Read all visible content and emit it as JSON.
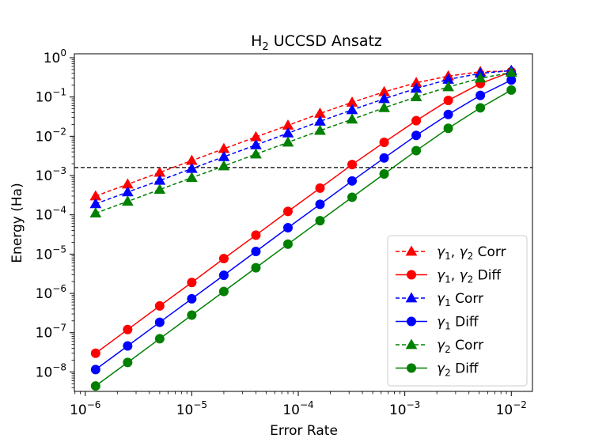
{
  "chart_data": {
    "type": "line",
    "title": "H₂ UCCSD Ansatz",
    "title_main": "H",
    "title_sub": "2",
    "title_rest": " UCCSD Ansatz",
    "xlabel": "Error Rate",
    "ylabel": "Energy (Ha)",
    "xscale": "log",
    "yscale": "log",
    "xlim": [
      7.9e-07,
      0.0158
    ],
    "ylim": [
      3.2e-09,
      1.26
    ],
    "x": [
      1.25e-06,
      2.5e-06,
      5e-06,
      1e-05,
      2e-05,
      4e-05,
      8e-05,
      0.00016,
      0.00032,
      0.00064,
      0.00128,
      0.00256,
      0.00512,
      0.01
    ],
    "hline": {
      "y": 0.0016,
      "style": "dashed",
      "color": "#000000"
    },
    "x_ticks": [
      {
        "value": 1e-06,
        "base": "10",
        "exp": "−6"
      },
      {
        "value": 1e-05,
        "base": "10",
        "exp": "−5"
      },
      {
        "value": 0.0001,
        "base": "10",
        "exp": "−4"
      },
      {
        "value": 0.001,
        "base": "10",
        "exp": "−3"
      },
      {
        "value": 0.01,
        "base": "10",
        "exp": "−2"
      }
    ],
    "y_ticks": [
      {
        "value": 1e-08,
        "base": "10",
        "exp": "−8"
      },
      {
        "value": 1e-07,
        "base": "10",
        "exp": "−7"
      },
      {
        "value": 1e-06,
        "base": "10",
        "exp": "−6"
      },
      {
        "value": 1e-05,
        "base": "10",
        "exp": "−5"
      },
      {
        "value": 0.0001,
        "base": "10",
        "exp": "−4"
      },
      {
        "value": 0.001,
        "base": "10",
        "exp": "−3"
      },
      {
        "value": 0.01,
        "base": "10",
        "exp": "−2"
      },
      {
        "value": 0.1,
        "base": "10",
        "exp": "−1"
      },
      {
        "value": 1,
        "base": "10",
        "exp": "0"
      }
    ],
    "legend_position": "lower-right",
    "series": [
      {
        "name": "γ1, γ2 Corr",
        "label_parts": [
          "γ",
          "1",
          ", γ",
          "2",
          " Corr"
        ],
        "color": "#ff0000",
        "dash": true,
        "marker": "triangle",
        "values": [
          0.0003,
          0.0006,
          0.0012,
          0.0024,
          0.0048,
          0.0096,
          0.019,
          0.038,
          0.073,
          0.135,
          0.23,
          0.34,
          0.44,
          0.46
        ]
      },
      {
        "name": "γ1, γ2 Diff",
        "label_parts": [
          "γ",
          "1",
          ", γ",
          "2",
          " Diff"
        ],
        "color": "#ff0000",
        "dash": false,
        "marker": "circle",
        "values": [
          3e-08,
          1.2e-07,
          4.8e-07,
          1.9e-06,
          7.7e-06,
          3.05e-05,
          0.000122,
          0.00048,
          0.0019,
          0.007,
          0.025,
          0.082,
          0.22,
          0.44
        ]
      },
      {
        "name": "γ1 Corr",
        "label_parts": [
          "γ",
          "1",
          "",
          "",
          " Corr"
        ],
        "color": "#0000ff",
        "dash": true,
        "marker": "triangle",
        "values": [
          0.00019,
          0.00038,
          0.00075,
          0.0015,
          0.003,
          0.006,
          0.012,
          0.024,
          0.047,
          0.09,
          0.165,
          0.28,
          0.4,
          0.47
        ]
      },
      {
        "name": "γ1 Diff",
        "label_parts": [
          "γ",
          "1",
          "",
          "",
          " Diff"
        ],
        "color": "#0000ff",
        "dash": false,
        "marker": "circle",
        "values": [
          1.15e-08,
          4.6e-08,
          1.84e-07,
          7.3e-07,
          2.9e-06,
          1.17e-05,
          4.7e-05,
          0.000185,
          0.00073,
          0.0028,
          0.0105,
          0.036,
          0.11,
          0.27
        ]
      },
      {
        "name": "γ2 Corr",
        "label_parts": [
          "γ",
          "2",
          "",
          "",
          " Corr"
        ],
        "color": "#008000",
        "dash": true,
        "marker": "triangle",
        "values": [
          0.00011,
          0.00022,
          0.00044,
          0.00088,
          0.00175,
          0.0035,
          0.007,
          0.014,
          0.027,
          0.053,
          0.1,
          0.18,
          0.3,
          0.42
        ]
      },
      {
        "name": "γ2 Diff",
        "label_parts": [
          "γ",
          "2",
          "",
          "",
          " Diff"
        ],
        "color": "#008000",
        "dash": false,
        "marker": "circle",
        "values": [
          4.4e-09,
          1.75e-08,
          7e-08,
          2.8e-07,
          1.12e-06,
          4.5e-06,
          1.8e-05,
          7.1e-05,
          0.00028,
          0.0011,
          0.0043,
          0.016,
          0.053,
          0.15
        ]
      }
    ]
  }
}
